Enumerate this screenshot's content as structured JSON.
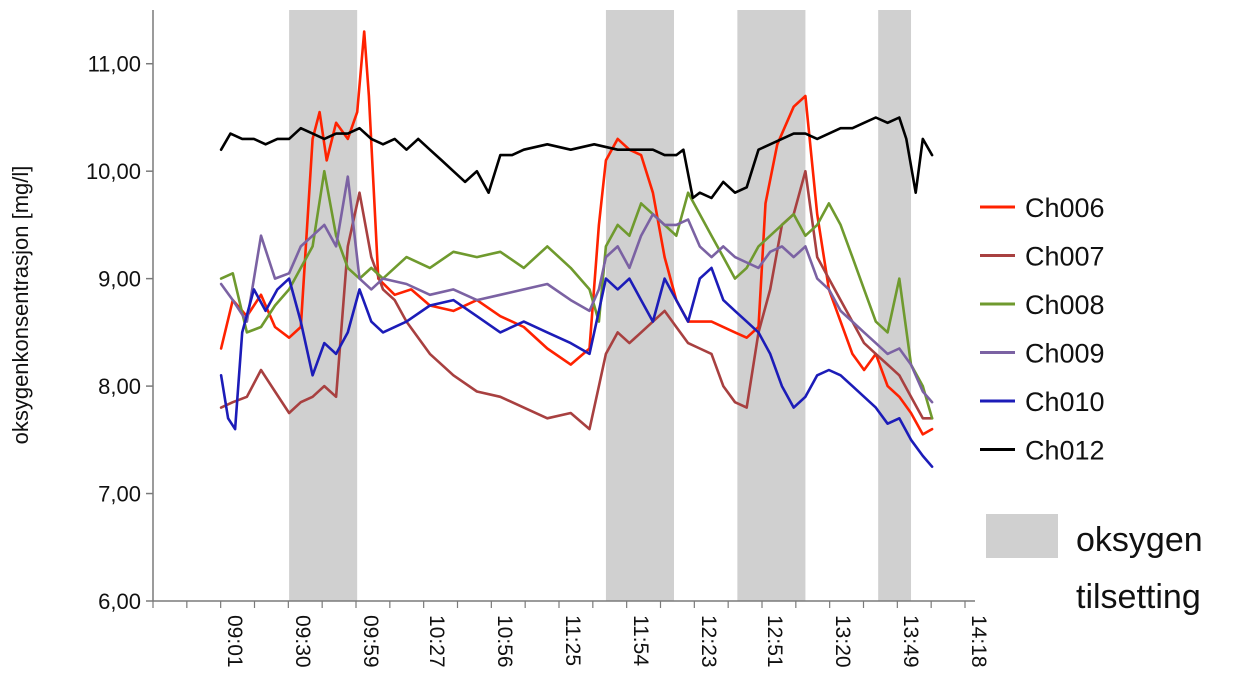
{
  "chart_data": {
    "type": "line",
    "ylabel": "oksygenkonsentrasjon  [mg/l]",
    "xlabel": "",
    "ylim": [
      6.0,
      11.5
    ],
    "y_ticks": [
      "6,00",
      "7,00",
      "8,00",
      "9,00",
      "10,00",
      "11,00"
    ],
    "y_tick_values": [
      6,
      7,
      8,
      9,
      10,
      11
    ],
    "x_ticks": [
      "09:01",
      "09:30",
      "09:59",
      "10:27",
      "10:56",
      "11:25",
      "11:54",
      "12:23",
      "12:51",
      "13:20",
      "13:49",
      "14:18"
    ],
    "x_range": [
      "08:32",
      "14:18"
    ],
    "grid": false,
    "legend_position": "right",
    "shaded_intervals": [
      {
        "start": "09:30",
        "end": "09:59"
      },
      {
        "start": "11:45",
        "end": "12:14"
      },
      {
        "start": "12:41",
        "end": "13:10"
      },
      {
        "start": "13:41",
        "end": "13:55"
      }
    ],
    "shade_legend": {
      "line1": "oksygen",
      "line2": "tilsetting",
      "color": "#d0d0d0"
    },
    "series": [
      {
        "name": "Ch006",
        "color": "#ff2200",
        "x": [
          "09:01",
          "09:06",
          "09:12",
          "09:18",
          "09:24",
          "09:30",
          "09:35",
          "09:40",
          "09:43",
          "09:46",
          "09:50",
          "09:55",
          "09:59",
          "10:02",
          "10:04",
          "10:08",
          "10:15",
          "10:22",
          "10:30",
          "10:40",
          "10:50",
          "11:00",
          "11:10",
          "11:20",
          "11:30",
          "11:38",
          "11:42",
          "11:45",
          "11:50",
          "11:55",
          "12:00",
          "12:05",
          "12:10",
          "12:15",
          "12:20",
          "12:30",
          "12:40",
          "12:45",
          "12:50",
          "12:53",
          "12:58",
          "13:05",
          "13:10",
          "13:15",
          "13:20",
          "13:25",
          "13:30",
          "13:35",
          "13:40",
          "13:45",
          "13:50",
          "13:55",
          "14:00",
          "14:04"
        ],
        "y": [
          8.35,
          8.8,
          8.65,
          8.85,
          8.55,
          8.45,
          8.55,
          10.3,
          10.55,
          10.1,
          10.45,
          10.3,
          10.55,
          11.3,
          10.7,
          9.0,
          8.85,
          8.9,
          8.75,
          8.7,
          8.8,
          8.65,
          8.55,
          8.35,
          8.2,
          8.35,
          9.5,
          10.1,
          10.3,
          10.2,
          10.15,
          9.8,
          9.2,
          8.8,
          8.6,
          8.6,
          8.5,
          8.45,
          8.55,
          9.7,
          10.25,
          10.6,
          10.7,
          9.6,
          8.9,
          8.6,
          8.3,
          8.15,
          8.3,
          8.0,
          7.9,
          7.75,
          7.55,
          7.6
        ]
      },
      {
        "name": "Ch007",
        "color": "#a84040",
        "x": [
          "09:01",
          "09:06",
          "09:12",
          "09:18",
          "09:24",
          "09:30",
          "09:35",
          "09:40",
          "09:45",
          "09:50",
          "09:55",
          "10:00",
          "10:05",
          "10:10",
          "10:15",
          "10:20",
          "10:30",
          "10:40",
          "10:50",
          "11:00",
          "11:10",
          "11:20",
          "11:30",
          "11:38",
          "11:42",
          "11:45",
          "11:50",
          "11:55",
          "12:00",
          "12:05",
          "12:10",
          "12:15",
          "12:20",
          "12:25",
          "12:30",
          "12:35",
          "12:40",
          "12:45",
          "12:50",
          "12:55",
          "13:00",
          "13:05",
          "13:10",
          "13:15",
          "13:20",
          "13:25",
          "13:30",
          "13:35",
          "13:40",
          "13:45",
          "13:50",
          "13:55",
          "14:00",
          "14:04"
        ],
        "y": [
          7.8,
          7.85,
          7.9,
          8.15,
          7.95,
          7.75,
          7.85,
          7.9,
          8.0,
          7.9,
          9.3,
          9.8,
          9.2,
          8.9,
          8.8,
          8.6,
          8.3,
          8.1,
          7.95,
          7.9,
          7.8,
          7.7,
          7.75,
          7.6,
          8.0,
          8.3,
          8.5,
          8.4,
          8.5,
          8.6,
          8.7,
          8.55,
          8.4,
          8.35,
          8.3,
          8.0,
          7.85,
          7.8,
          8.5,
          8.9,
          9.5,
          9.6,
          10.0,
          9.2,
          9.0,
          8.8,
          8.6,
          8.4,
          8.3,
          8.2,
          8.1,
          7.9,
          7.7,
          7.7
        ]
      },
      {
        "name": "Ch008",
        "color": "#6f9a2e",
        "x": [
          "09:01",
          "09:06",
          "09:12",
          "09:18",
          "09:24",
          "09:30",
          "09:35",
          "09:40",
          "09:45",
          "09:50",
          "09:55",
          "10:00",
          "10:05",
          "10:10",
          "10:20",
          "10:30",
          "10:40",
          "10:50",
          "11:00",
          "11:10",
          "11:20",
          "11:30",
          "11:38",
          "11:42",
          "11:45",
          "11:50",
          "11:55",
          "12:00",
          "12:05",
          "12:10",
          "12:15",
          "12:20",
          "12:25",
          "12:30",
          "12:35",
          "12:40",
          "12:45",
          "12:50",
          "12:55",
          "13:00",
          "13:05",
          "13:10",
          "13:15",
          "13:20",
          "13:25",
          "13:30",
          "13:35",
          "13:40",
          "13:45",
          "13:50",
          "13:55",
          "14:00",
          "14:04"
        ],
        "y": [
          9.0,
          9.05,
          8.5,
          8.55,
          8.75,
          8.9,
          9.1,
          9.3,
          10.0,
          9.4,
          9.1,
          9.0,
          9.1,
          9.0,
          9.2,
          9.1,
          9.25,
          9.2,
          9.25,
          9.1,
          9.3,
          9.1,
          8.9,
          8.6,
          9.3,
          9.5,
          9.4,
          9.7,
          9.6,
          9.5,
          9.4,
          9.8,
          9.6,
          9.4,
          9.2,
          9.0,
          9.1,
          9.3,
          9.4,
          9.5,
          9.6,
          9.4,
          9.5,
          9.7,
          9.5,
          9.2,
          8.9,
          8.6,
          8.5,
          9.0,
          8.2,
          8.0,
          7.7
        ]
      },
      {
        "name": "Ch009",
        "color": "#7b62a3",
        "x": [
          "09:01",
          "09:06",
          "09:12",
          "09:18",
          "09:24",
          "09:30",
          "09:35",
          "09:40",
          "09:45",
          "09:50",
          "09:55",
          "10:00",
          "10:05",
          "10:10",
          "10:20",
          "10:30",
          "10:40",
          "10:50",
          "11:00",
          "11:10",
          "11:20",
          "11:30",
          "11:38",
          "11:42",
          "11:45",
          "11:50",
          "11:55",
          "12:00",
          "12:05",
          "12:10",
          "12:15",
          "12:20",
          "12:25",
          "12:30",
          "12:35",
          "12:40",
          "12:45",
          "12:50",
          "12:55",
          "13:00",
          "13:05",
          "13:10",
          "13:15",
          "13:20",
          "13:25",
          "13:30",
          "13:35",
          "13:40",
          "13:45",
          "13:50",
          "13:55",
          "14:00",
          "14:04"
        ],
        "y": [
          8.95,
          8.8,
          8.6,
          9.4,
          9.0,
          9.05,
          9.3,
          9.4,
          9.5,
          9.3,
          9.95,
          9.0,
          8.9,
          9.0,
          8.95,
          8.85,
          8.9,
          8.8,
          8.85,
          8.9,
          8.95,
          8.8,
          8.7,
          8.9,
          9.2,
          9.3,
          9.1,
          9.4,
          9.6,
          9.5,
          9.5,
          9.55,
          9.3,
          9.2,
          9.3,
          9.2,
          9.15,
          9.1,
          9.25,
          9.3,
          9.2,
          9.3,
          9.0,
          8.9,
          8.7,
          8.6,
          8.5,
          8.4,
          8.3,
          8.35,
          8.2,
          7.95,
          7.85
        ]
      },
      {
        "name": "Ch010",
        "color": "#1c1cb8",
        "x": [
          "09:01",
          "09:04",
          "09:07",
          "09:10",
          "09:15",
          "09:20",
          "09:25",
          "09:30",
          "09:35",
          "09:40",
          "09:45",
          "09:50",
          "09:55",
          "10:00",
          "10:05",
          "10:10",
          "10:20",
          "10:30",
          "10:40",
          "10:50",
          "11:00",
          "11:10",
          "11:20",
          "11:30",
          "11:38",
          "11:42",
          "11:45",
          "11:50",
          "11:55",
          "12:00",
          "12:05",
          "12:10",
          "12:15",
          "12:20",
          "12:25",
          "12:30",
          "12:35",
          "12:40",
          "12:45",
          "12:50",
          "12:55",
          "13:00",
          "13:05",
          "13:10",
          "13:15",
          "13:20",
          "13:25",
          "13:30",
          "13:35",
          "13:40",
          "13:45",
          "13:50",
          "13:55",
          "14:00",
          "14:04"
        ],
        "y": [
          8.1,
          7.7,
          7.6,
          8.5,
          8.9,
          8.7,
          8.9,
          9.0,
          8.6,
          8.1,
          8.4,
          8.3,
          8.5,
          8.9,
          8.6,
          8.5,
          8.6,
          8.75,
          8.8,
          8.65,
          8.5,
          8.6,
          8.5,
          8.4,
          8.3,
          8.7,
          9.0,
          8.9,
          9.0,
          8.8,
          8.6,
          9.0,
          8.8,
          8.6,
          9.0,
          9.1,
          8.8,
          8.7,
          8.6,
          8.5,
          8.3,
          8.0,
          7.8,
          7.9,
          8.1,
          8.15,
          8.1,
          8.0,
          7.9,
          7.8,
          7.65,
          7.7,
          7.5,
          7.35,
          7.25
        ]
      },
      {
        "name": "Ch012",
        "color": "#000000",
        "x": [
          "09:01",
          "09:05",
          "09:10",
          "09:15",
          "09:20",
          "09:25",
          "09:30",
          "09:35",
          "09:40",
          "09:45",
          "09:50",
          "09:55",
          "10:00",
          "10:05",
          "10:10",
          "10:15",
          "10:20",
          "10:25",
          "10:30",
          "10:35",
          "10:40",
          "10:45",
          "10:50",
          "10:55",
          "11:00",
          "11:05",
          "11:10",
          "11:20",
          "11:30",
          "11:40",
          "11:50",
          "12:00",
          "12:05",
          "12:10",
          "12:15",
          "12:18",
          "12:22",
          "12:25",
          "12:30",
          "12:35",
          "12:40",
          "12:45",
          "12:50",
          "12:55",
          "13:00",
          "13:05",
          "13:10",
          "13:15",
          "13:20",
          "13:25",
          "13:30",
          "13:35",
          "13:40",
          "13:45",
          "13:50",
          "13:53",
          "13:57",
          "14:00",
          "14:04"
        ],
        "y": [
          10.2,
          10.35,
          10.3,
          10.3,
          10.25,
          10.3,
          10.3,
          10.4,
          10.35,
          10.3,
          10.35,
          10.35,
          10.4,
          10.3,
          10.25,
          10.3,
          10.2,
          10.3,
          10.2,
          10.1,
          10.0,
          9.9,
          10.0,
          9.8,
          10.15,
          10.15,
          10.2,
          10.25,
          10.2,
          10.25,
          10.2,
          10.2,
          10.2,
          10.15,
          10.15,
          10.2,
          9.75,
          9.8,
          9.75,
          9.9,
          9.8,
          9.85,
          10.2,
          10.25,
          10.3,
          10.35,
          10.35,
          10.3,
          10.35,
          10.4,
          10.4,
          10.45,
          10.5,
          10.45,
          10.5,
          10.3,
          9.8,
          10.3,
          10.15
        ]
      }
    ]
  }
}
